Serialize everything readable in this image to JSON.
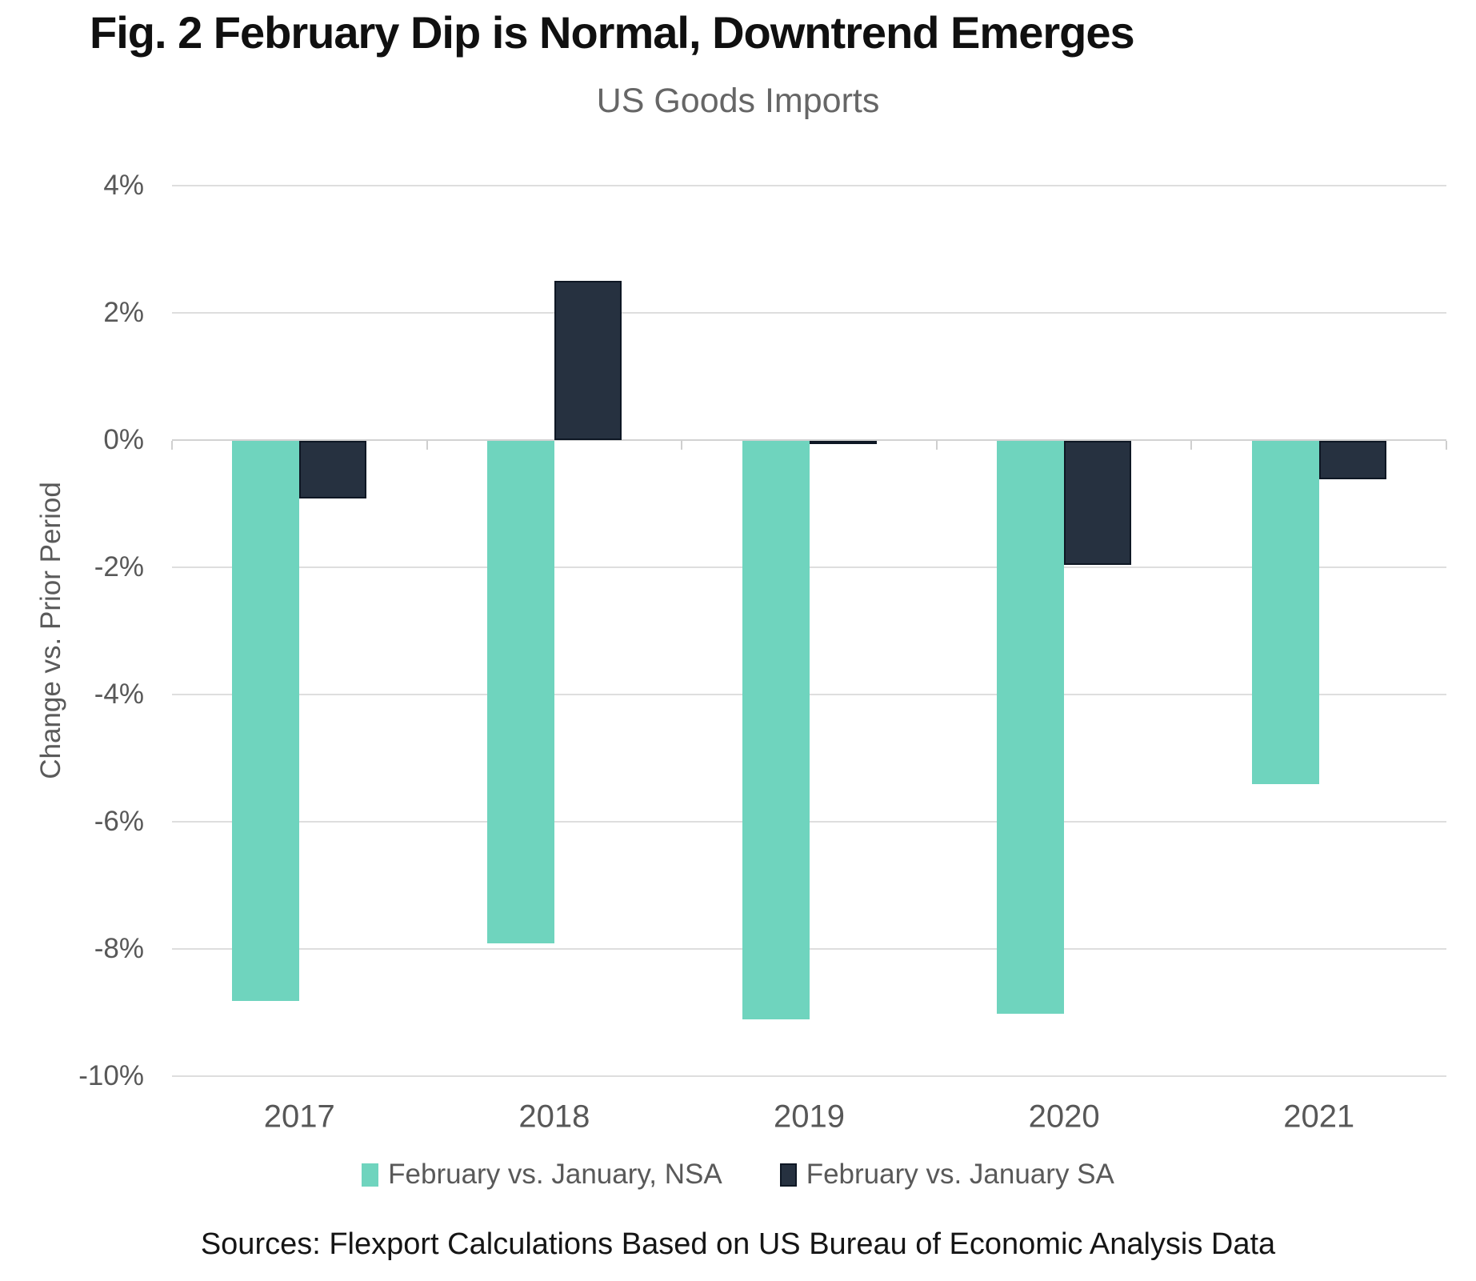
{
  "chart_data": {
    "type": "bar",
    "title": "Fig. 2 February Dip is Normal, Downtrend Emerges",
    "subtitle": "US Goods Imports",
    "ylabel": "Change vs. Prior Period",
    "xlabel": "",
    "categories": [
      "2017",
      "2018",
      "2019",
      "2020",
      "2021"
    ],
    "series": [
      {
        "name": "February vs. January, NSA",
        "color": "#6fd4be",
        "values": [
          -8.8,
          -7.9,
          -9.1,
          -9.0,
          -5.4
        ]
      },
      {
        "name": "February vs. January SA",
        "color": "#263140",
        "border_color": "#0e1724",
        "values": [
          -0.9,
          2.5,
          -0.05,
          -1.95,
          -0.6
        ]
      }
    ],
    "ylim": [
      -10,
      4
    ],
    "yticks": [
      4,
      2,
      0,
      -2,
      -4,
      -6,
      -8,
      -10
    ],
    "ytick_labels": [
      "4%",
      "2%",
      "0%",
      "-2%",
      "-4%",
      "-6%",
      "-8%",
      "-10%"
    ],
    "grid": true,
    "legend_position": "bottom",
    "source": "Sources: Flexport Calculations Based on US Bureau of Economic Analysis Data"
  }
}
